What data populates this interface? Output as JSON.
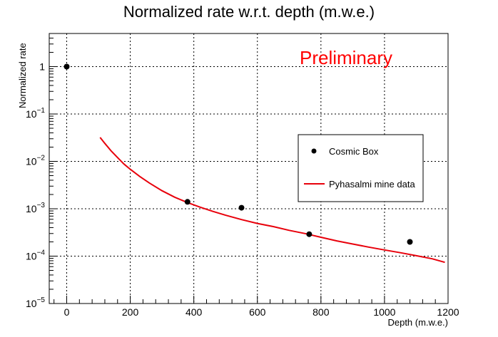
{
  "chart_data": {
    "type": "scatter",
    "title": "Normalized rate w.r.t. depth (m.w.e.)",
    "xlabel": "Depth (m.w.e.)",
    "ylabel": "Normalized rate",
    "xlim": [
      -55,
      1200
    ],
    "ylim": [
      1e-05,
      5
    ],
    "yscale": "log",
    "grid": true,
    "x_ticks": [
      0,
      200,
      400,
      600,
      800,
      1000,
      1200
    ],
    "x_tick_labels": [
      "0",
      "200",
      "400",
      "600",
      "800",
      "1000",
      "1200"
    ],
    "y_ticks": [
      {
        "value": 1e-05,
        "base": "10",
        "exp": "−5"
      },
      {
        "value": 0.0001,
        "base": "10",
        "exp": "−4"
      },
      {
        "value": 0.001,
        "base": "10",
        "exp": "−3"
      },
      {
        "value": 0.01,
        "base": "10",
        "exp": "−2"
      },
      {
        "value": 0.1,
        "base": "10",
        "exp": "−1"
      },
      {
        "value": 1,
        "base": "1",
        "exp": ""
      }
    ],
    "annotation": "Preliminary",
    "legend_position": "right",
    "series": [
      {
        "name": "Cosmic Box",
        "type": "scatter",
        "color": "#000000",
        "x": [
          0,
          380,
          550,
          763,
          1080
        ],
        "y": [
          1.0,
          0.0014,
          0.00105,
          0.00029,
          0.0002
        ]
      },
      {
        "name": "Pyhasalmi mine data",
        "type": "line",
        "color": "#e8000b",
        "x": [
          105,
          120,
          140,
          160,
          180,
          200,
          230,
          260,
          300,
          340,
          380,
          420,
          460,
          500,
          550,
          600,
          650,
          700,
          750,
          800,
          850,
          900,
          950,
          1000,
          1050,
          1100,
          1150,
          1190
        ],
        "y": [
          0.032,
          0.024,
          0.0165,
          0.012,
          0.0088,
          0.0068,
          0.0048,
          0.0035,
          0.0024,
          0.00175,
          0.00135,
          0.00108,
          0.00088,
          0.00073,
          0.00059,
          0.00049,
          0.00042,
          0.00035,
          0.0003,
          0.00025,
          0.00021,
          0.00018,
          0.000155,
          0.000135,
          0.000118,
          0.000102,
          8.8e-05,
          7.4e-05
        ]
      }
    ]
  }
}
